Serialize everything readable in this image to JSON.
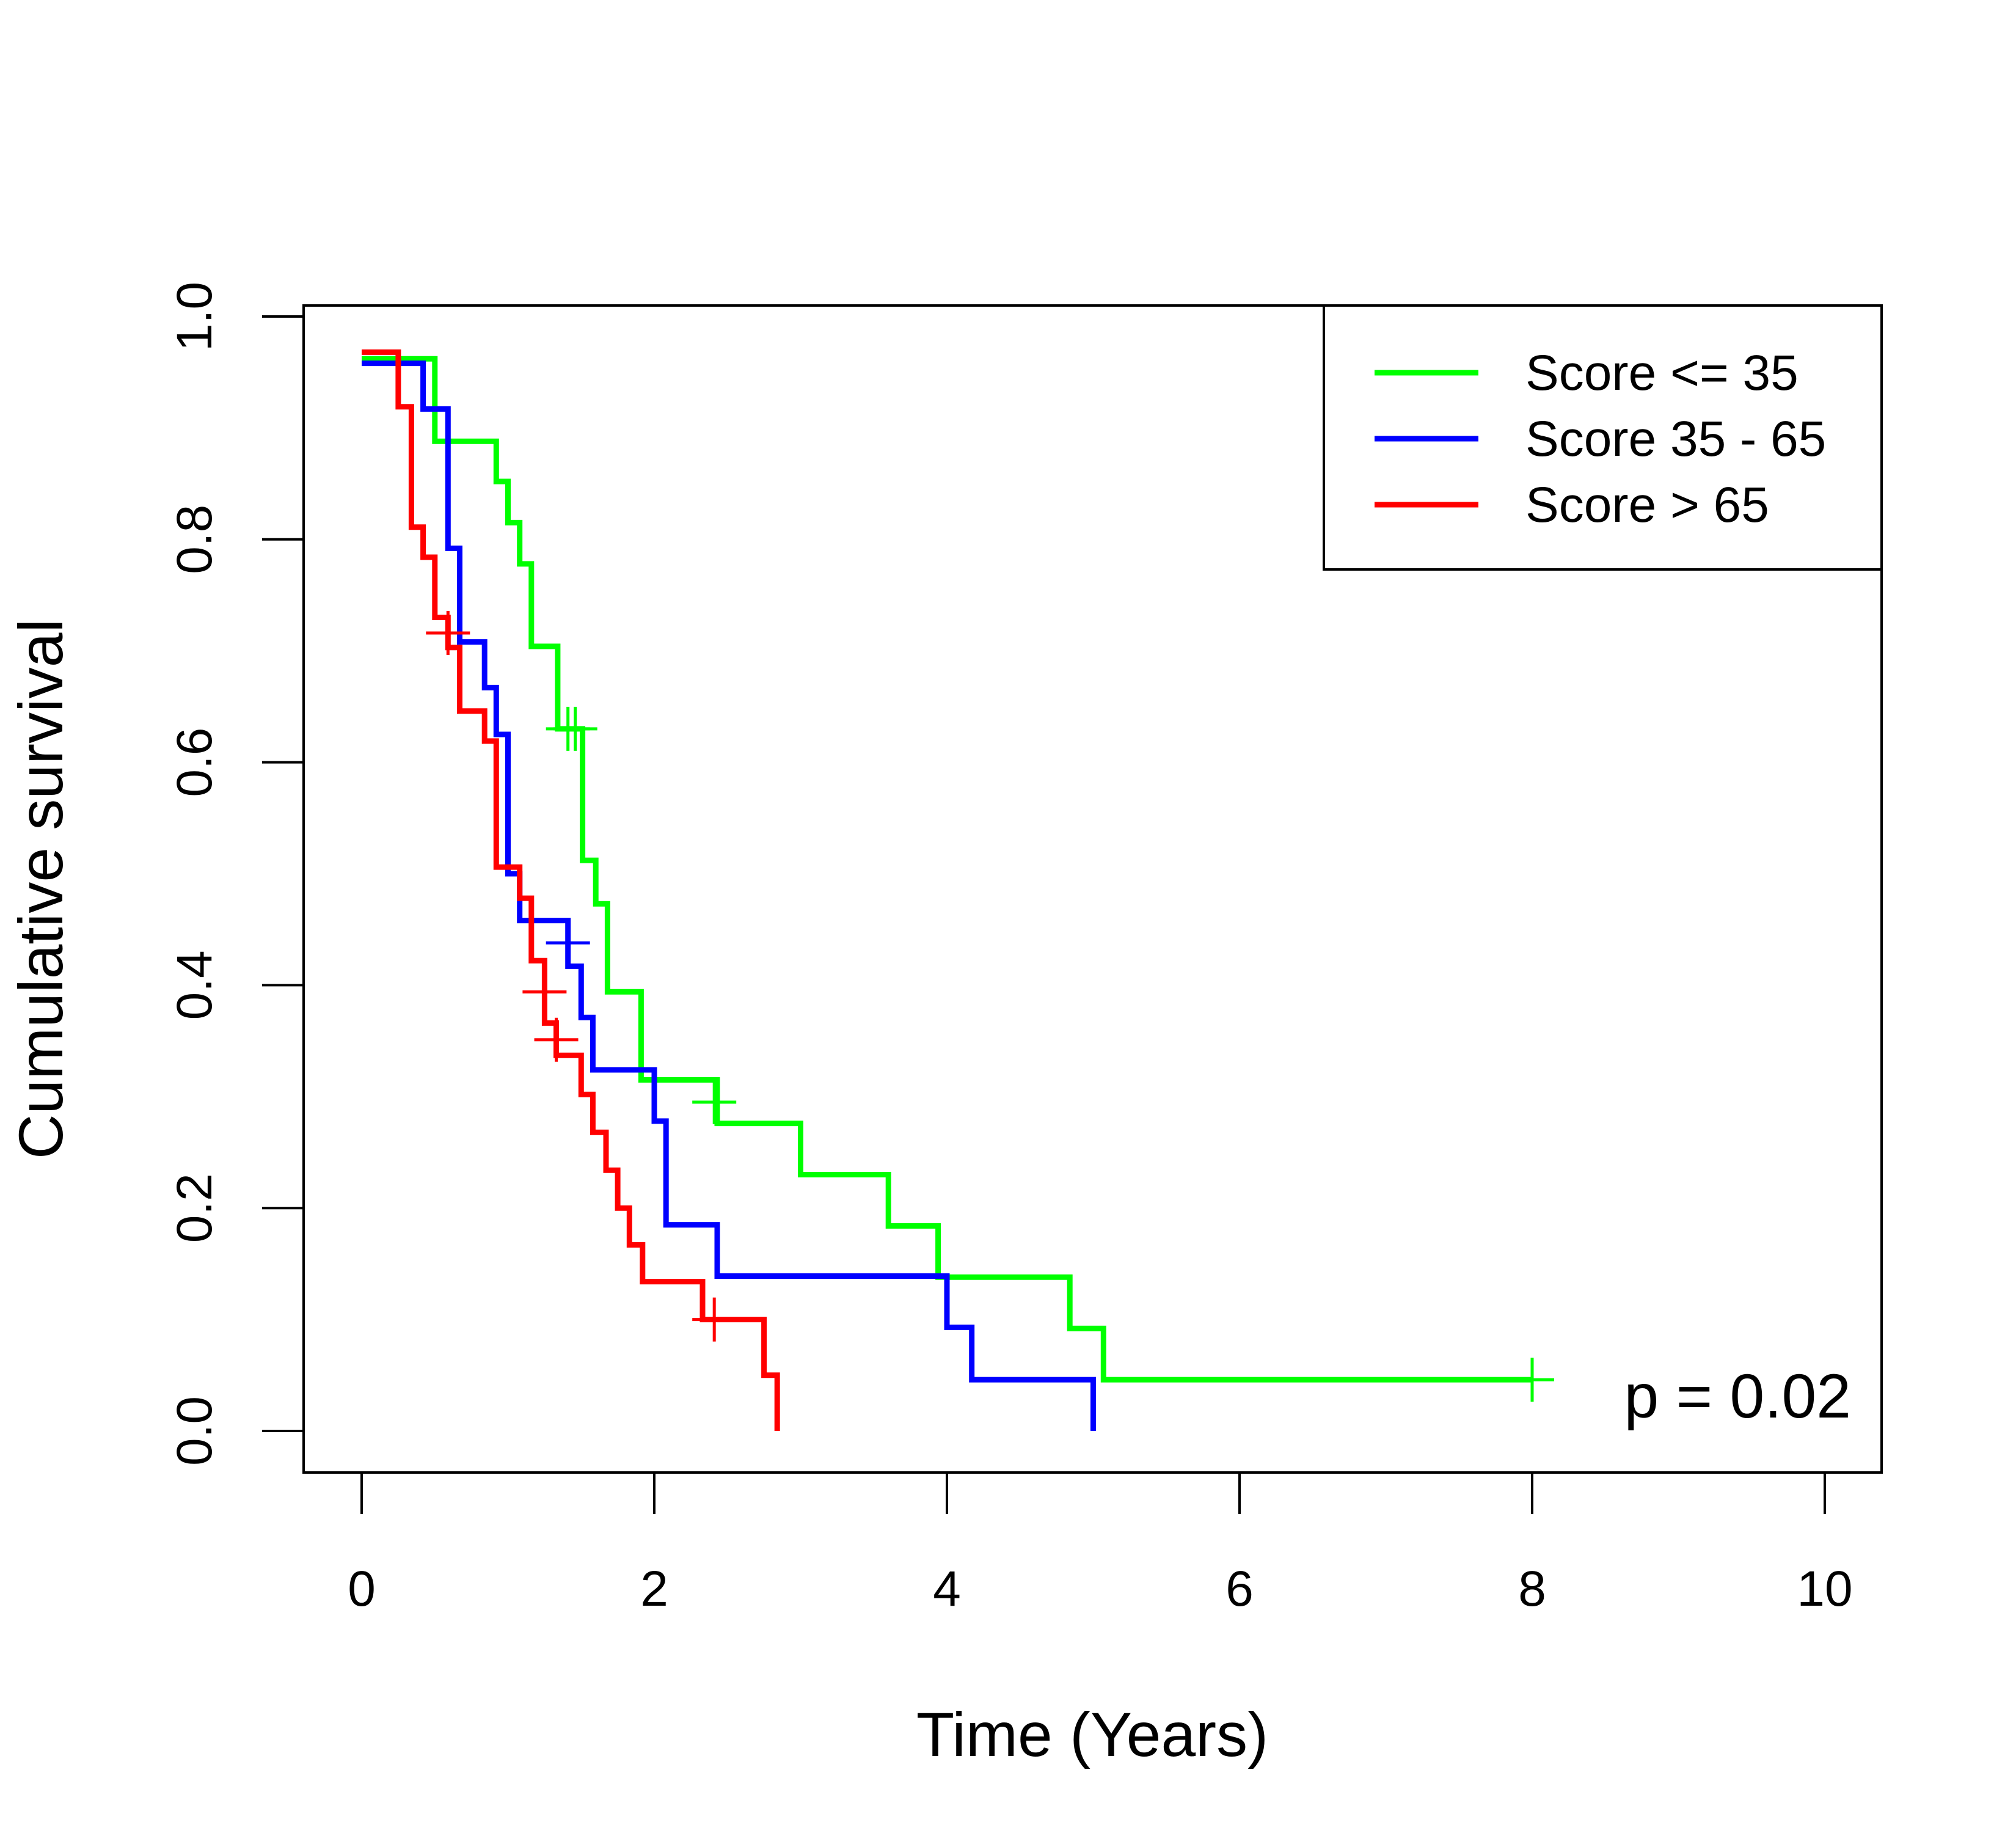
{
  "chart_data": {
    "type": "line",
    "title": "",
    "xlabel": "Time (Years)",
    "ylabel": "Cumulative survival",
    "xlim": [
      0,
      10
    ],
    "ylim": [
      0,
      1
    ],
    "xticks": [
      "0",
      "2",
      "4",
      "6",
      "8",
      "10"
    ],
    "yticks": [
      "0.0",
      "0.2",
      "0.4",
      "0.6",
      "0.8",
      "1.0"
    ],
    "grid": false,
    "legend_position": "top-right",
    "annotation": "p = 0.02",
    "series": [
      {
        "name": "Score <= 35",
        "color": "#00ff00",
        "steps": [
          [
            0,
            0.962
          ],
          [
            0.5,
            0.962
          ],
          [
            0.5,
            0.888
          ],
          [
            0.92,
            0.888
          ],
          [
            0.92,
            0.852
          ],
          [
            1.0,
            0.852
          ],
          [
            1.0,
            0.815
          ],
          [
            1.08,
            0.815
          ],
          [
            1.08,
            0.778
          ],
          [
            1.16,
            0.778
          ],
          [
            1.16,
            0.704
          ],
          [
            1.34,
            0.704
          ],
          [
            1.34,
            0.63
          ],
          [
            1.51,
            0.63
          ],
          [
            1.51,
            0.512
          ],
          [
            1.6,
            0.512
          ],
          [
            1.6,
            0.473
          ],
          [
            1.68,
            0.473
          ],
          [
            1.68,
            0.394
          ],
          [
            1.91,
            0.394
          ],
          [
            1.91,
            0.315
          ],
          [
            2.43,
            0.315
          ],
          [
            2.43,
            0.276
          ],
          [
            3.0,
            0.276
          ],
          [
            3.0,
            0.23
          ],
          [
            3.6,
            0.23
          ],
          [
            3.6,
            0.184
          ],
          [
            3.94,
            0.184
          ],
          [
            3.94,
            0.138
          ],
          [
            4.84,
            0.138
          ],
          [
            4.84,
            0.092
          ],
          [
            5.07,
            0.092
          ],
          [
            5.07,
            0.046
          ],
          [
            8.0,
            0.046
          ]
        ],
        "censored": [
          [
            1.41,
            0.63
          ],
          [
            1.46,
            0.63
          ],
          [
            2.41,
            0.295
          ],
          [
            8.0,
            0.046
          ]
        ]
      },
      {
        "name": "Score 35 - 65",
        "color": "#0000ff",
        "steps": [
          [
            0,
            0.958
          ],
          [
            0.42,
            0.958
          ],
          [
            0.42,
            0.917
          ],
          [
            0.59,
            0.917
          ],
          [
            0.59,
            0.792
          ],
          [
            0.67,
            0.792
          ],
          [
            0.67,
            0.708
          ],
          [
            0.84,
            0.708
          ],
          [
            0.84,
            0.667
          ],
          [
            0.92,
            0.667
          ],
          [
            0.92,
            0.625
          ],
          [
            1.0,
            0.625
          ],
          [
            1.0,
            0.5
          ],
          [
            1.08,
            0.5
          ],
          [
            1.08,
            0.458
          ],
          [
            1.41,
            0.458
          ],
          [
            1.41,
            0.417
          ],
          [
            1.5,
            0.417
          ],
          [
            1.5,
            0.371
          ],
          [
            1.58,
            0.371
          ],
          [
            1.58,
            0.324
          ],
          [
            2.0,
            0.324
          ],
          [
            2.0,
            0.278
          ],
          [
            2.08,
            0.278
          ],
          [
            2.08,
            0.185
          ],
          [
            2.43,
            0.185
          ],
          [
            2.43,
            0.139
          ],
          [
            4.0,
            0.139
          ],
          [
            4.0,
            0.093
          ],
          [
            4.17,
            0.093
          ],
          [
            4.17,
            0.046
          ],
          [
            5.0,
            0.046
          ],
          [
            5.0,
            0.0
          ]
        ],
        "censored": [
          [
            1.41,
            0.438
          ]
        ]
      },
      {
        "name": "Score > 65",
        "color": "#ff0000",
        "steps": [
          [
            0,
            0.968
          ],
          [
            0.25,
            0.968
          ],
          [
            0.25,
            0.919
          ],
          [
            0.34,
            0.919
          ],
          [
            0.34,
            0.811
          ],
          [
            0.42,
            0.811
          ],
          [
            0.42,
            0.784
          ],
          [
            0.5,
            0.784
          ],
          [
            0.5,
            0.73
          ],
          [
            0.59,
            0.73
          ],
          [
            0.59,
            0.703
          ],
          [
            0.67,
            0.703
          ],
          [
            0.67,
            0.646
          ],
          [
            0.84,
            0.646
          ],
          [
            0.84,
            0.619
          ],
          [
            0.92,
            0.619
          ],
          [
            0.92,
            0.506
          ],
          [
            1.08,
            0.506
          ],
          [
            1.08,
            0.478
          ],
          [
            1.16,
            0.478
          ],
          [
            1.16,
            0.422
          ],
          [
            1.25,
            0.422
          ],
          [
            1.25,
            0.366
          ],
          [
            1.33,
            0.366
          ],
          [
            1.33,
            0.337
          ],
          [
            1.5,
            0.337
          ],
          [
            1.5,
            0.302
          ],
          [
            1.58,
            0.302
          ],
          [
            1.58,
            0.268
          ],
          [
            1.67,
            0.268
          ],
          [
            1.67,
            0.234
          ],
          [
            1.75,
            0.234
          ],
          [
            1.75,
            0.2
          ],
          [
            1.83,
            0.2
          ],
          [
            1.83,
            0.167
          ],
          [
            1.92,
            0.167
          ],
          [
            1.92,
            0.134
          ],
          [
            2.33,
            0.134
          ],
          [
            2.33,
            0.1
          ],
          [
            2.75,
            0.1
          ],
          [
            2.75,
            0.05
          ],
          [
            2.84,
            0.05
          ],
          [
            2.84,
            0.0
          ]
        ],
        "censored": [
          [
            0.59,
            0.716
          ],
          [
            1.25,
            0.394
          ],
          [
            1.33,
            0.351
          ],
          [
            2.41,
            0.1
          ]
        ]
      }
    ]
  }
}
